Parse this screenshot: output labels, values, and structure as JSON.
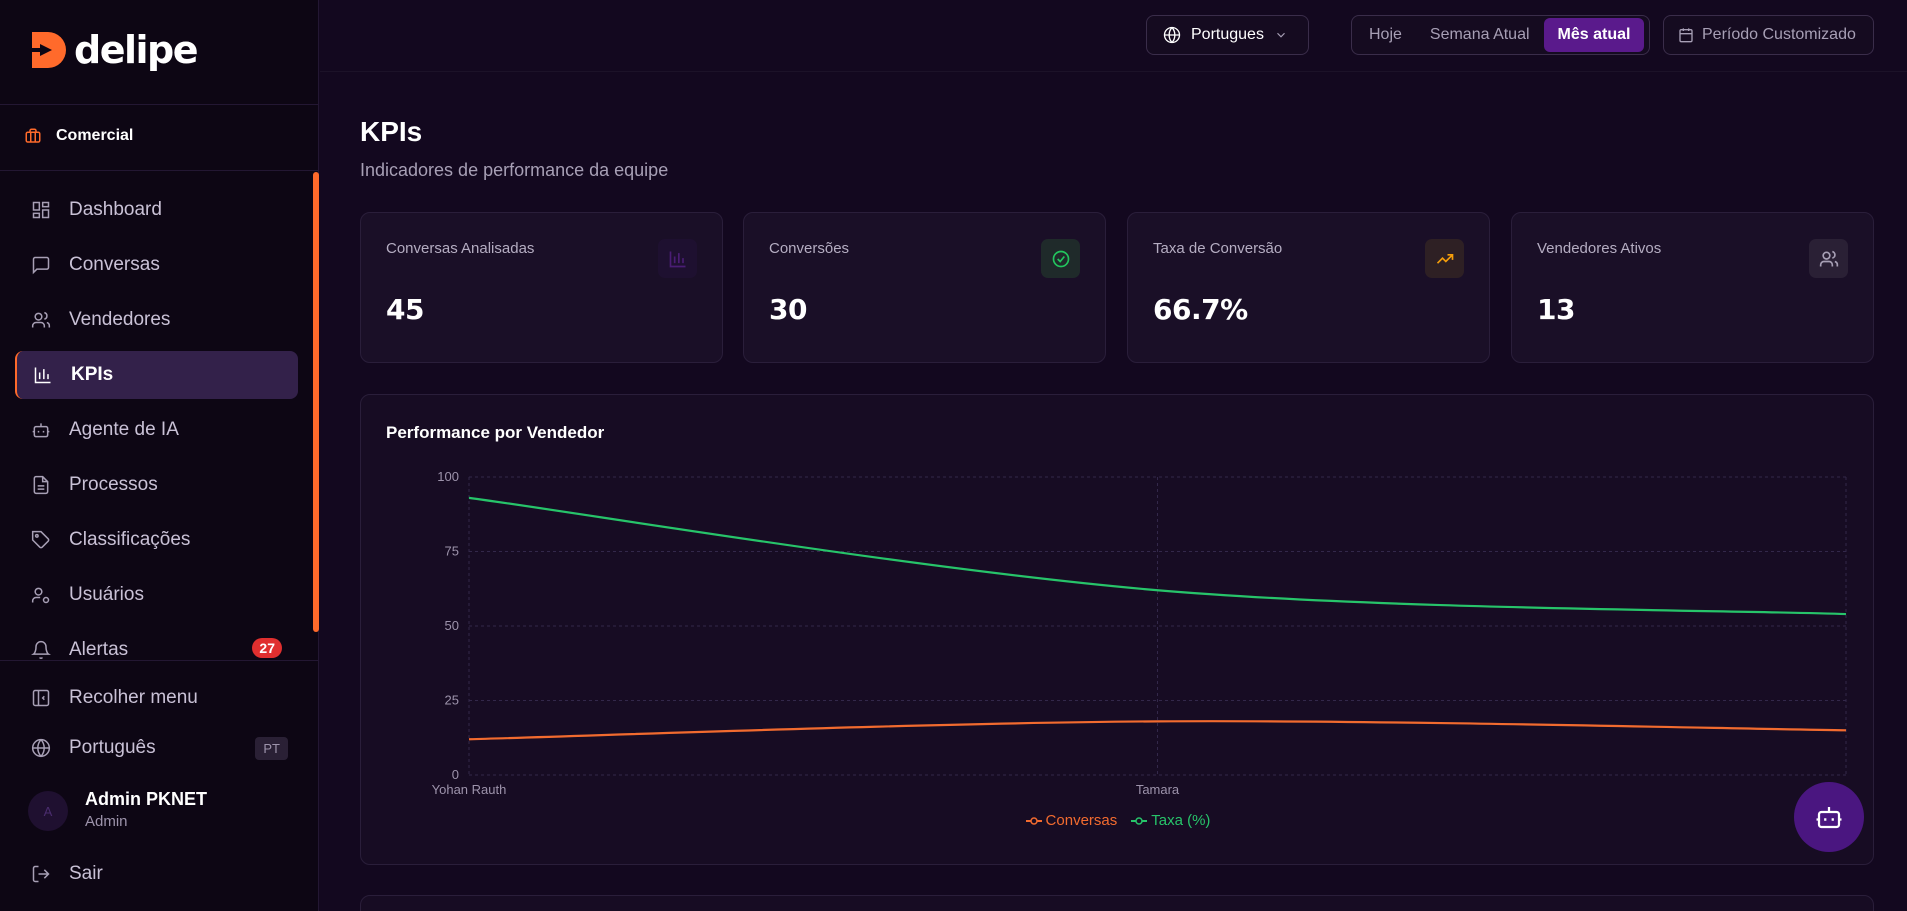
{
  "app": {
    "logo_text": "delipe"
  },
  "workspace": {
    "label": "Comercial"
  },
  "sidebar": {
    "items": [
      {
        "label": "Dashboard",
        "icon": "dashboard-icon"
      },
      {
        "label": "Conversas",
        "icon": "chat-icon"
      },
      {
        "label": "Vendedores",
        "icon": "users-icon"
      },
      {
        "label": "KPIs",
        "icon": "bar-chart-icon",
        "active": true
      },
      {
        "label": "Agente de IA",
        "icon": "bot-icon"
      },
      {
        "label": "Processos",
        "icon": "document-icon"
      },
      {
        "label": "Classificações",
        "icon": "tag-icon"
      },
      {
        "label": "Usuários",
        "icon": "user-gear-icon"
      },
      {
        "label": "Alertas",
        "icon": "bell-icon",
        "badge": "27"
      }
    ],
    "collapse_label": "Recolher menu",
    "language_label": "Português",
    "language_code": "PT",
    "user": {
      "initial": "A",
      "name": "Admin PKNET",
      "role": "Admin"
    },
    "logout_label": "Sair"
  },
  "topbar": {
    "language": "Portugues",
    "periods": [
      "Hoje",
      "Semana Atual",
      "Mês atual"
    ],
    "active_period": "Mês atual",
    "custom_period": "Período Customizado"
  },
  "page": {
    "title": "KPIs",
    "subtitle": "Indicadores de performance da equipe"
  },
  "kpis": [
    {
      "label": "Conversas Analisadas",
      "value": "45",
      "icon": "bar-chart-icon",
      "color": "#7a2fc2"
    },
    {
      "label": "Conversões",
      "value": "30",
      "icon": "check-circle-icon",
      "color": "#22c55e"
    },
    {
      "label": "Taxa de Conversão",
      "value": "66.7%",
      "icon": "trending-up-icon",
      "color": "#f59e0b"
    },
    {
      "label": "Vendedores Ativos",
      "value": "13",
      "icon": "users-icon",
      "color": "#a79fb5"
    }
  ],
  "chart_data": {
    "type": "line",
    "title": "Performance por Vendedor",
    "categories": [
      "Yohan Rauth",
      "Tamara",
      ""
    ],
    "y_ticks": [
      0,
      25,
      50,
      75,
      100
    ],
    "ylim": [
      0,
      100
    ],
    "grid": true,
    "legend": "bottom-center",
    "series": [
      {
        "name": "Conversas",
        "values": [
          12,
          18,
          15
        ],
        "color": "#f26b2f"
      },
      {
        "name": "Taxa (%)",
        "values": [
          93,
          62,
          54
        ],
        "color": "#27c46a"
      }
    ]
  }
}
